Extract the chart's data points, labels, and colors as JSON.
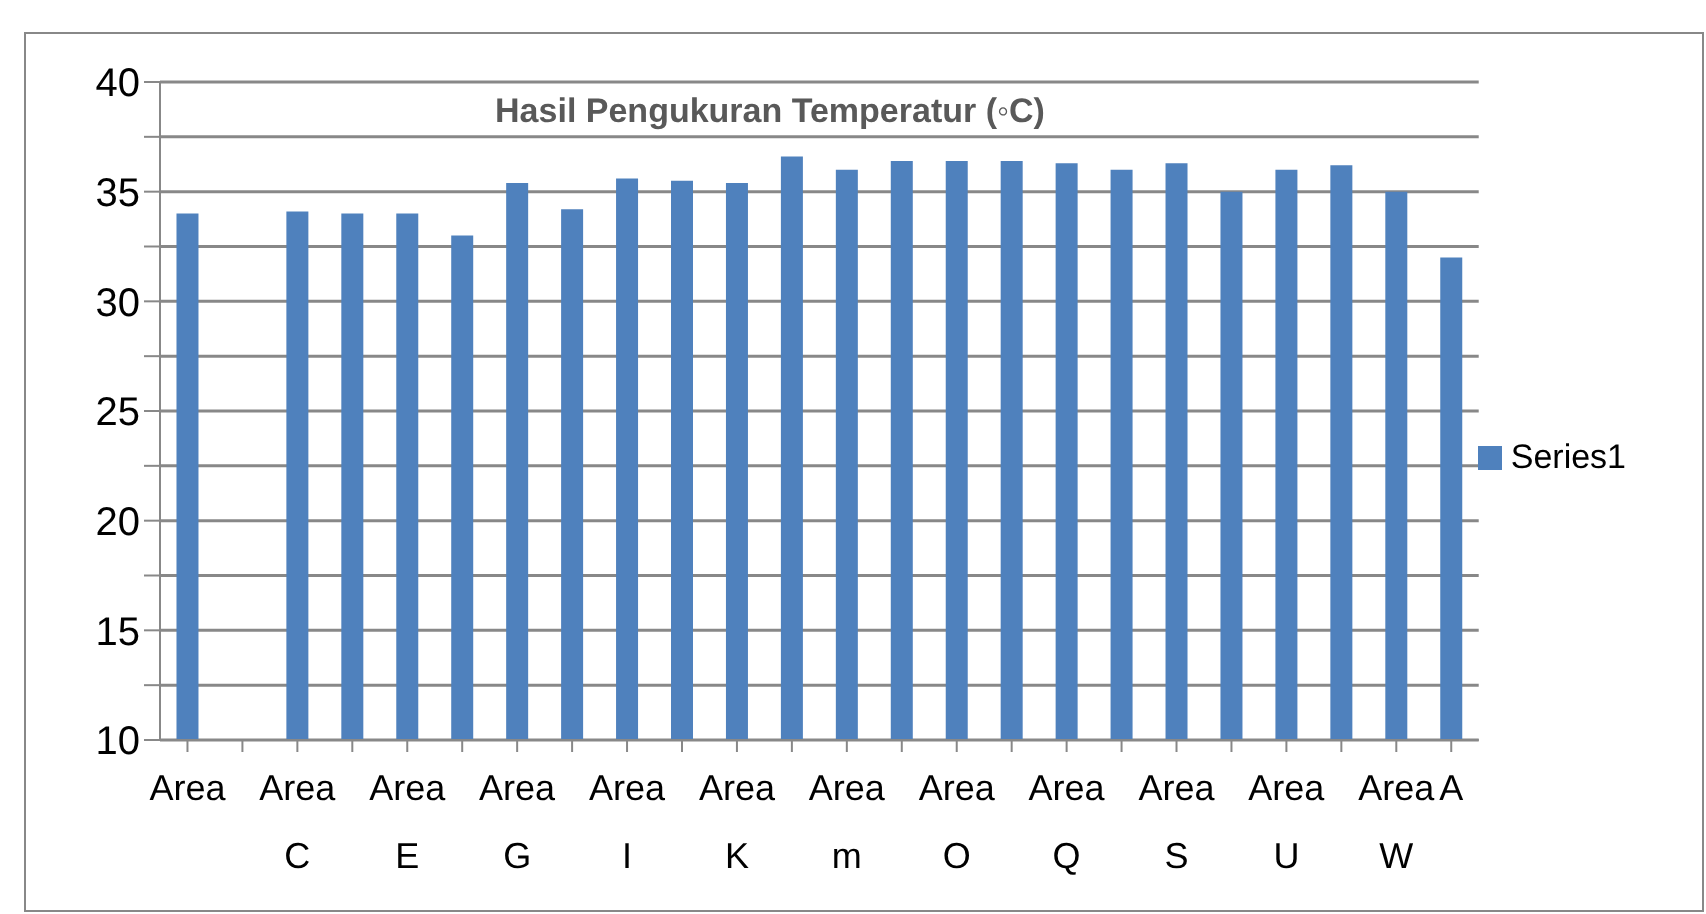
{
  "chart_data": {
    "type": "bar",
    "title": "Hasil Pengukuran Temperatur (◦C)",
    "categories": [
      "Area",
      null,
      "Area C",
      null,
      "Area E",
      null,
      "Area G",
      null,
      "Area I",
      null,
      "Area K",
      null,
      "Area m",
      null,
      "Area O",
      null,
      "Area Q",
      null,
      "Area S",
      null,
      "Area U",
      null,
      "Area W",
      "A"
    ],
    "series": [
      {
        "name": "Series1",
        "color": "#4f81bd",
        "values": [
          34.0,
          null,
          34.1,
          34.0,
          34.0,
          33.0,
          35.4,
          34.2,
          35.6,
          35.5,
          35.4,
          36.6,
          36.0,
          36.4,
          36.4,
          36.4,
          36.3,
          36.0,
          36.3,
          35.0,
          36.0,
          36.2,
          35.0,
          32.0
        ]
      }
    ],
    "ylim": [
      10,
      40
    ],
    "yticks": [
      10,
      {
        "value": 12.5,
        "label": null
      },
      15,
      {
        "value": 17.5,
        "label": null
      },
      20,
      {
        "value": 22.5,
        "label": null
      },
      25,
      {
        "value": 27.5,
        "label": null
      },
      30,
      {
        "value": 32.5,
        "label": null
      },
      35,
      {
        "value": 37.5,
        "label": null
      },
      40
    ],
    "grid": "y",
    "legend": "right"
  }
}
